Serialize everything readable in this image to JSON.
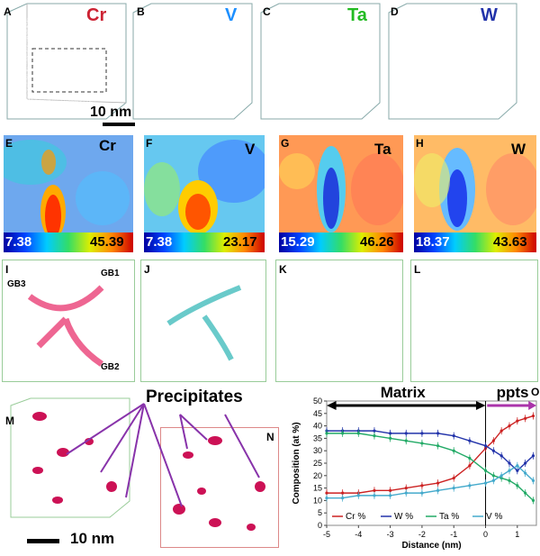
{
  "panels": {
    "A": "A",
    "B": "B",
    "C": "C",
    "D": "D",
    "E": "E",
    "F": "F",
    "G": "G",
    "H": "H",
    "I": "I",
    "J": "J",
    "K": "K",
    "L": "L",
    "M": "M",
    "N": "N",
    "O": "O"
  },
  "elements": {
    "cr": "Cr",
    "v": "V",
    "ta": "Ta",
    "w": "W"
  },
  "colors": {
    "cr": "#e8336e",
    "v": "#2ab3b3",
    "ta": "#33cc33",
    "w": "#2233cc",
    "purple": "#9933aa"
  },
  "scale_top": "10 nm",
  "scale_bottom": "10 nm",
  "colorbars": {
    "cr": {
      "min": "7.38",
      "max": "45.39"
    },
    "v": {
      "min": "7.38",
      "max": "23.17"
    },
    "ta": {
      "min": "15.29",
      "max": "46.26"
    },
    "w": {
      "min": "18.37",
      "max": "43.63"
    }
  },
  "gb": {
    "gb1": "GB1",
    "gb2": "GB2",
    "gb3": "GB3"
  },
  "precipitates_label": "Precipitates",
  "chart_data": {
    "type": "line",
    "xlabel": "Distance (nm)",
    "ylabel": "Composition (at %)",
    "xlim": [
      -5,
      1.6
    ],
    "ylim": [
      0,
      50
    ],
    "xticks": [
      "-5",
      "-4",
      "-3",
      "-2",
      "-1",
      "0",
      "1"
    ],
    "yticks": [
      "0",
      "5",
      "10",
      "15",
      "20",
      "25",
      "30",
      "35",
      "40",
      "45",
      "50"
    ],
    "annotations": {
      "matrix": "Matrix",
      "ppts": "ppts"
    },
    "legend": [
      "Cr %",
      "W %",
      "Ta %",
      "V %"
    ],
    "series": [
      {
        "name": "Cr %",
        "color": "#cc2222",
        "x": [
          -5,
          -4.5,
          -4,
          -3.5,
          -3,
          -2.5,
          -2,
          -1.5,
          -1,
          -0.5,
          0,
          0.25,
          0.5,
          0.75,
          1.0,
          1.25,
          1.5
        ],
        "y": [
          13,
          13,
          13,
          14,
          14,
          15,
          16,
          17,
          19,
          24,
          31,
          34,
          38,
          40,
          42,
          43,
          44
        ]
      },
      {
        "name": "W %",
        "color": "#2233aa",
        "x": [
          -5,
          -4.5,
          -4,
          -3.5,
          -3,
          -2.5,
          -2,
          -1.5,
          -1,
          -0.5,
          0,
          0.25,
          0.5,
          0.75,
          1.0,
          1.25,
          1.5
        ],
        "y": [
          38,
          38,
          38,
          38,
          37,
          37,
          37,
          37,
          36,
          34,
          32,
          30,
          28,
          25,
          22,
          25,
          28
        ]
      },
      {
        "name": "Ta %",
        "color": "#22aa66",
        "x": [
          -5,
          -4.5,
          -4,
          -3.5,
          -3,
          -2.5,
          -2,
          -1.5,
          -1,
          -0.5,
          0,
          0.25,
          0.5,
          0.75,
          1.0,
          1.25,
          1.5
        ],
        "y": [
          37,
          37,
          37,
          36,
          35,
          34,
          33,
          32,
          30,
          27,
          22,
          20,
          19,
          18,
          16,
          13,
          10
        ]
      },
      {
        "name": "V %",
        "color": "#44aacc",
        "x": [
          -5,
          -4.5,
          -4,
          -3.5,
          -3,
          -2.5,
          -2,
          -1.5,
          -1,
          -0.5,
          0,
          0.25,
          0.5,
          0.75,
          1.0,
          1.25,
          1.5
        ],
        "y": [
          11,
          11,
          12,
          12,
          12,
          13,
          13,
          14,
          15,
          16,
          17,
          18,
          20,
          22,
          24,
          21,
          18
        ]
      }
    ]
  }
}
